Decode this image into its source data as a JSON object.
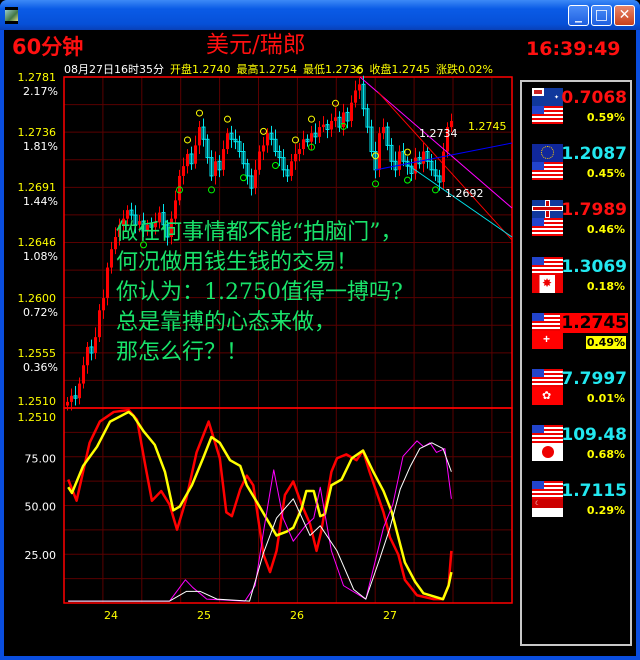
{
  "window": {
    "title_icon": "app-icon",
    "buttons": [
      "minimize",
      "maximize",
      "close"
    ]
  },
  "header": {
    "timeframe": "60分钟",
    "symbol": "美元/瑞郎",
    "clock": "16:39:49",
    "bar_info": {
      "datetime": "08月27日16时35分",
      "open": "开盘1.2740",
      "high": "最高1.2754",
      "low": "最低1.2736",
      "close": "收盘1.2745",
      "change": "涨跌0.02%"
    }
  },
  "overlay_text": [
    "做任何事情都不能“拍脑门”，",
    "何况做用钱生钱的交易！",
    "你认为：1.2750值得一搏吗?",
    "总是靠搏的心态来做，",
    "那怎么行？！"
  ],
  "colors": {
    "up": "#ff0000",
    "down": "#00e5ee",
    "grid": "#5a0000",
    "border": "#ff0000",
    "k": "#ff0000",
    "d": "#ffff00",
    "line3": "#ff00ff",
    "line4": "#ffffff",
    "overlay": "#19e36a"
  },
  "chart_data": [
    {
      "type": "candlestick",
      "title": "美元/瑞郎 60分钟",
      "y_ticks": [
        {
          "price": "1.2781",
          "pct": "2.17%"
        },
        {
          "price": "1.2736",
          "pct": "1.81%"
        },
        {
          "price": "1.2691",
          "pct": "1.44%"
        },
        {
          "price": "1.2646",
          "pct": "1.08%"
        },
        {
          "price": "1.2600",
          "pct": "0.72%"
        },
        {
          "price": "1.2555",
          "pct": "0.36%"
        },
        {
          "price": "1.2510",
          "pct": ""
        }
      ],
      "ylim": [
        1.251,
        1.2781
      ],
      "closes": [
        1.2515,
        1.252,
        1.2518,
        1.253,
        1.2545,
        1.256,
        1.2555,
        1.2568,
        1.259,
        1.26,
        1.2625,
        1.264,
        1.265,
        1.266,
        1.2665,
        1.2672,
        1.2668,
        1.266,
        1.2663,
        1.2655,
        1.266,
        1.2658,
        1.2662,
        1.267,
        1.266,
        1.265,
        1.2665,
        1.268,
        1.27,
        1.2708,
        1.2718,
        1.271,
        1.2725,
        1.274,
        1.273,
        1.2715,
        1.27,
        1.2712,
        1.2705,
        1.2722,
        1.2735,
        1.273,
        1.2728,
        1.272,
        1.271,
        1.27,
        1.269,
        1.2705,
        1.272,
        1.2725,
        1.2735,
        1.273,
        1.272,
        1.2715,
        1.2705,
        1.27,
        1.2712,
        1.2718,
        1.2722,
        1.273,
        1.2728,
        1.2735,
        1.2732,
        1.274,
        1.2742,
        1.2738,
        1.2745,
        1.2748,
        1.274,
        1.2752,
        1.2745,
        1.276,
        1.277,
        1.2775,
        1.2755,
        1.274,
        1.272,
        1.2705,
        1.2735,
        1.274,
        1.2725,
        1.2712,
        1.2705,
        1.272,
        1.2712,
        1.2708,
        1.2702,
        1.2715,
        1.271,
        1.272,
        1.2712,
        1.2705,
        1.27,
        1.2695,
        1.272,
        1.274,
        1.2745
      ],
      "swing_high_bars": [
        30,
        33,
        40,
        49,
        57,
        61,
        67,
        73,
        77,
        85
      ],
      "swing_low_bars": [
        19,
        28,
        36,
        44,
        52,
        61,
        69,
        77,
        85,
        92
      ],
      "annotations": [
        {
          "text": "1.2734",
          "color": "#ffffff"
        },
        {
          "text": "1.2692",
          "color": "#ffffff"
        },
        {
          "text": "1.2745",
          "color": "#ffff00"
        }
      ],
      "trendlines": [
        {
          "color": "#ff00ff"
        },
        {
          "color": "#ff0000"
        },
        {
          "color": "#00e5ee"
        },
        {
          "color": "#0000ff"
        }
      ]
    },
    {
      "type": "line",
      "ylim": [
        0,
        100
      ],
      "y_ticks": [
        "1.2510",
        "75.00",
        "50.00",
        "25.00"
      ],
      "x_ticks": [
        "24",
        "25",
        "26",
        "27"
      ],
      "series": [
        {
          "color": "#ff0000",
          "width": 2.5,
          "points": [
            [
              23.54,
              64
            ],
            [
              23.63,
              53
            ],
            [
              23.77,
              83
            ],
            [
              23.88,
              94
            ],
            [
              24.03,
              99
            ],
            [
              24.19,
              100
            ],
            [
              24.28,
              95
            ],
            [
              24.37,
              71
            ],
            [
              24.44,
              53
            ],
            [
              24.54,
              58
            ],
            [
              24.63,
              51
            ],
            [
              24.71,
              38
            ],
            [
              24.81,
              54
            ],
            [
              24.92,
              78
            ],
            [
              25.05,
              94
            ],
            [
              25.17,
              75
            ],
            [
              25.24,
              47
            ],
            [
              25.3,
              45
            ],
            [
              25.39,
              59
            ],
            [
              25.46,
              66
            ],
            [
              25.53,
              61
            ],
            [
              25.64,
              25
            ],
            [
              25.71,
              16
            ],
            [
              25.78,
              27
            ],
            [
              25.87,
              56
            ],
            [
              25.96,
              63
            ],
            [
              26.05,
              51
            ],
            [
              26.14,
              41
            ],
            [
              26.21,
              27
            ],
            [
              26.26,
              37
            ],
            [
              26.37,
              68
            ],
            [
              26.43,
              75
            ],
            [
              26.53,
              77
            ],
            [
              26.64,
              74
            ],
            [
              26.71,
              79
            ],
            [
              26.78,
              68
            ],
            [
              26.93,
              47
            ],
            [
              27.0,
              34
            ],
            [
              27.09,
              25
            ],
            [
              27.16,
              12
            ],
            [
              27.29,
              4
            ],
            [
              27.47,
              2
            ],
            [
              27.57,
              2
            ],
            [
              27.63,
              9
            ],
            [
              27.66,
              27
            ]
          ]
        },
        {
          "color": "#ffff00",
          "width": 2.5,
          "points": [
            [
              23.54,
              60
            ],
            [
              23.58,
              57
            ],
            [
              23.7,
              71
            ],
            [
              23.85,
              81
            ],
            [
              23.99,
              94
            ],
            [
              24.19,
              99
            ],
            [
              24.24,
              97
            ],
            [
              24.35,
              89
            ],
            [
              24.47,
              82
            ],
            [
              24.58,
              68
            ],
            [
              24.67,
              48
            ],
            [
              24.74,
              50
            ],
            [
              24.87,
              61
            ],
            [
              24.99,
              75
            ],
            [
              25.08,
              86
            ],
            [
              25.17,
              83
            ],
            [
              25.28,
              74
            ],
            [
              25.39,
              71
            ],
            [
              25.46,
              61
            ],
            [
              25.56,
              53
            ],
            [
              25.67,
              44
            ],
            [
              25.78,
              35
            ],
            [
              25.89,
              37
            ],
            [
              25.96,
              39
            ],
            [
              26.05,
              49
            ],
            [
              26.1,
              58
            ],
            [
              26.18,
              58
            ],
            [
              26.25,
              45
            ],
            [
              26.3,
              46
            ],
            [
              26.37,
              61
            ],
            [
              26.48,
              64
            ],
            [
              26.59,
              75
            ],
            [
              26.71,
              79
            ],
            [
              26.82,
              68
            ],
            [
              26.93,
              58
            ],
            [
              27.02,
              47
            ],
            [
              27.09,
              34
            ],
            [
              27.16,
              21
            ],
            [
              27.27,
              11
            ],
            [
              27.36,
              5
            ],
            [
              27.57,
              2
            ],
            [
              27.63,
              9
            ],
            [
              27.66,
              16
            ]
          ]
        },
        {
          "color": "#ff00ff",
          "width": 1,
          "points": [
            [
              23.54,
              1
            ],
            [
              24.63,
              1
            ],
            [
              24.8,
              12
            ],
            [
              24.88,
              8
            ],
            [
              25.03,
              2
            ],
            [
              25.44,
              1
            ],
            [
              25.55,
              9
            ],
            [
              25.64,
              37
            ],
            [
              25.75,
              69
            ],
            [
              25.85,
              44
            ],
            [
              25.96,
              32
            ],
            [
              26.09,
              40
            ],
            [
              26.18,
              44
            ],
            [
              26.25,
              60
            ],
            [
              26.37,
              27
            ],
            [
              26.5,
              9
            ],
            [
              26.74,
              2
            ],
            [
              26.93,
              39
            ],
            [
              27.03,
              51
            ],
            [
              27.14,
              76
            ],
            [
              27.29,
              84
            ],
            [
              27.36,
              81
            ],
            [
              27.43,
              83
            ],
            [
              27.5,
              78
            ],
            [
              27.59,
              80
            ],
            [
              27.66,
              54
            ]
          ]
        },
        {
          "color": "#ffffff",
          "width": 1,
          "points": [
            [
              23.54,
              1
            ],
            [
              24.63,
              1
            ],
            [
              24.81,
              6
            ],
            [
              24.96,
              6
            ],
            [
              25.14,
              2
            ],
            [
              25.49,
              1
            ],
            [
              25.64,
              26
            ],
            [
              25.78,
              44
            ],
            [
              25.96,
              54
            ],
            [
              26.14,
              35
            ],
            [
              26.25,
              40
            ],
            [
              26.43,
              27
            ],
            [
              26.61,
              7
            ],
            [
              26.74,
              2
            ],
            [
              26.89,
              23
            ],
            [
              27.0,
              39
            ],
            [
              27.11,
              59
            ],
            [
              27.22,
              71
            ],
            [
              27.32,
              80
            ],
            [
              27.45,
              83
            ],
            [
              27.57,
              80
            ],
            [
              27.66,
              68
            ]
          ]
        }
      ]
    }
  ],
  "quotes": [
    {
      "pair": "AUD/USD",
      "flag_top": "au",
      "flag_bottom": "us",
      "price": "0.7068",
      "pct": "0.59%",
      "price_color": "#ff1010"
    },
    {
      "pair": "EUR/USD",
      "flag_top": "eu",
      "flag_bottom": "us",
      "price": "1.2087",
      "pct": "0.45%",
      "price_color": "#22e8f0"
    },
    {
      "pair": "GBP/USD",
      "flag_top": "gb",
      "flag_bottom": "us",
      "price": "1.7989",
      "pct": "0.46%",
      "price_color": "#ff1010"
    },
    {
      "pair": "USD/CAD",
      "flag_top": "us",
      "flag_bottom": "ca",
      "price": "1.3069",
      "pct": "0.18%",
      "price_color": "#22e8f0"
    },
    {
      "pair": "USD/CHF",
      "flag_top": "us",
      "flag_bottom": "ch",
      "price": "1.2745",
      "pct": "0.49%",
      "price_color": "#000000",
      "highlight": true
    },
    {
      "pair": "USD/HKD",
      "flag_top": "us",
      "flag_bottom": "hk",
      "price": "7.7997",
      "pct": "0.01%",
      "price_color": "#22e8f0"
    },
    {
      "pair": "USD/JPY",
      "flag_top": "us",
      "flag_bottom": "jp",
      "price": "109.48",
      "pct": "0.68%",
      "price_color": "#22e8f0"
    },
    {
      "pair": "USD/SGD",
      "flag_top": "us",
      "flag_bottom": "sg",
      "price": "1.7115",
      "pct": "0.29%",
      "price_color": "#22e8f0"
    }
  ]
}
